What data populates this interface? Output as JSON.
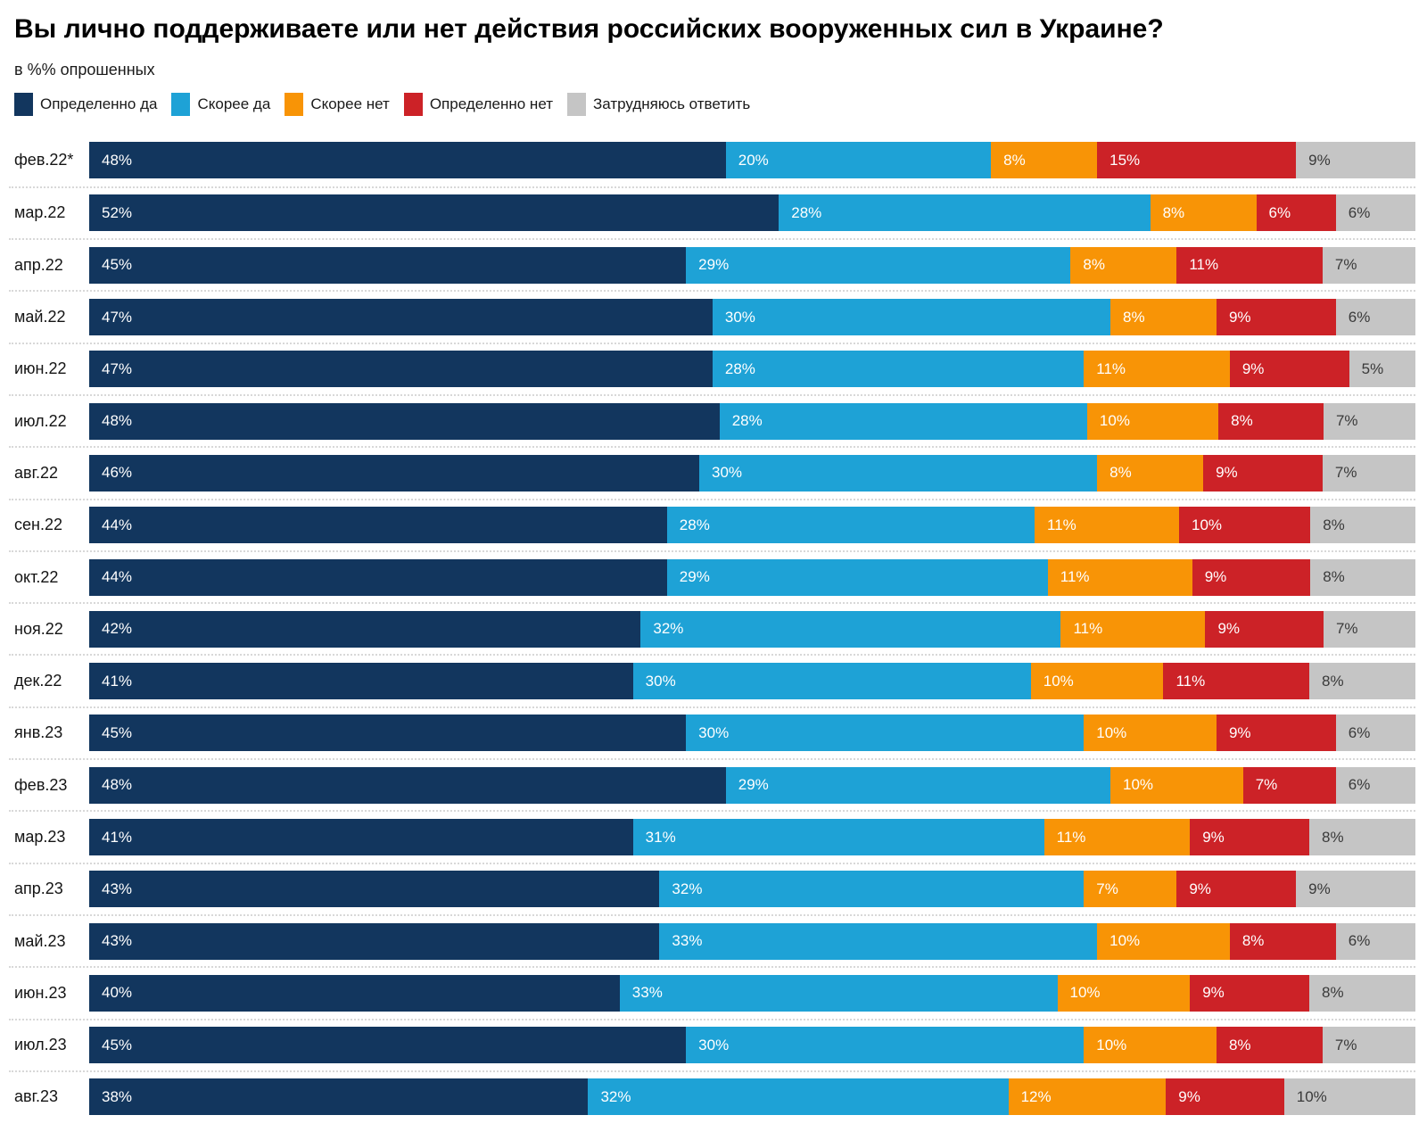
{
  "header": {
    "title": "Вы лично поддерживаете или нет действия российских вооруженных сил в Украине?",
    "subtitle": "в %% опрошенных"
  },
  "colors": {
    "definitely_yes": "#12365e",
    "rather_yes": "#1ea2d6",
    "rather_no": "#f89406",
    "definitely_no": "#cc2227",
    "hard_to_say": "#c5c5c5",
    "separator": "#d8d8d8",
    "label_on_dark": "#ffffff",
    "label_on_gray": "#3a3a3a"
  },
  "chart_data": {
    "type": "bar",
    "orientation": "horizontal_stacked",
    "unit": "%",
    "legend_position": "top",
    "grid": "dotted row separators, no axes",
    "xlim": [
      0,
      100
    ],
    "categories": [
      "фев.22*",
      "мар.22",
      "апр.22",
      "май.22",
      "июн.22",
      "июл.22",
      "авг.22",
      "сен.22",
      "окт.22",
      "ноя.22",
      "дек.22",
      "янв.23",
      "фев.23",
      "мар.23",
      "апр.23",
      "май.23",
      "июн.23",
      "июл.23",
      "авг.23"
    ],
    "series": [
      {
        "name": "Определенно да",
        "color": "#12365e",
        "label_color": "#ffffff",
        "values": [
          48,
          52,
          45,
          47,
          47,
          48,
          46,
          44,
          44,
          42,
          41,
          45,
          48,
          41,
          43,
          43,
          40,
          45,
          38
        ]
      },
      {
        "name": "Скорее да",
        "color": "#1ea2d6",
        "label_color": "#ffffff",
        "values": [
          20,
          28,
          29,
          30,
          28,
          28,
          30,
          28,
          29,
          32,
          30,
          30,
          29,
          31,
          32,
          33,
          33,
          30,
          32
        ]
      },
      {
        "name": "Скорее нет",
        "color": "#f89406",
        "label_color": "#ffffff",
        "values": [
          8,
          8,
          8,
          8,
          11,
          10,
          8,
          11,
          11,
          11,
          10,
          10,
          10,
          11,
          7,
          10,
          10,
          10,
          12
        ]
      },
      {
        "name": "Определенно нет",
        "color": "#cc2227",
        "label_color": "#ffffff",
        "values": [
          15,
          6,
          11,
          9,
          9,
          8,
          9,
          10,
          9,
          9,
          11,
          9,
          7,
          9,
          9,
          8,
          9,
          8,
          9
        ]
      },
      {
        "name": "Затрудняюсь ответить",
        "color": "#c5c5c5",
        "label_color": "#3a3a3a",
        "values": [
          9,
          6,
          7,
          6,
          5,
          7,
          7,
          8,
          8,
          7,
          8,
          6,
          6,
          8,
          9,
          6,
          8,
          7,
          10
        ]
      }
    ]
  }
}
